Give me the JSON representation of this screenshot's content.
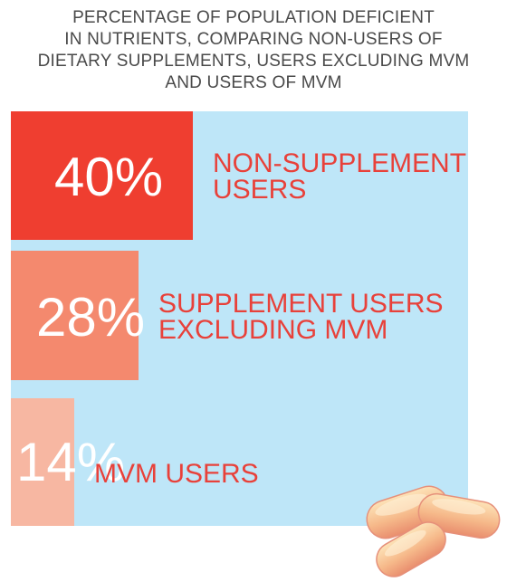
{
  "chart_data": {
    "type": "bar",
    "orientation": "horizontal",
    "title": "PERCENTAGE OF POPULATION DEFICIENT IN NUTRIENTS, COMPARING NON-USERS OF DIETARY SUPPLEMENTS, USERS EXCLUDING MVM AND USERS OF MVM",
    "title_lines": [
      "PERCENTAGE OF POPULATION DEFICIENT",
      "IN NUTRIENTS, COMPARING NON-USERS OF",
      "DIETARY SUPPLEMENTS, USERS EXCLUDING MVM",
      "AND USERS OF MVM"
    ],
    "categories": [
      "NON-SUPPLEMENT USERS",
      "SUPPLEMENT USERS EXCLUDING MVM",
      "MVM USERS"
    ],
    "category_lines": [
      [
        "NON-SUPPLEMENT",
        "USERS"
      ],
      [
        "SUPPLEMENT USERS",
        "EXCLUDING MVM"
      ],
      [
        "MVM USERS"
      ]
    ],
    "values": [
      40,
      28,
      14
    ],
    "value_labels": [
      "40%",
      "28%",
      "14%"
    ],
    "unit": "%",
    "xlim": [
      0,
      100
    ],
    "colors": [
      "#ef3e30",
      "#f4896e",
      "#f7b7a2"
    ],
    "background_color": "#bee6f8",
    "label_color": "#e8413a",
    "decoration": "pill-tablets-image"
  }
}
